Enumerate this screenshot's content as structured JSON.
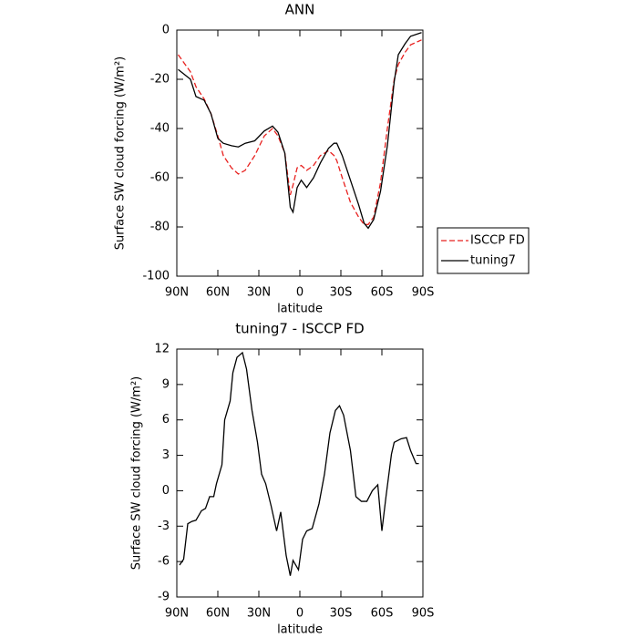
{
  "chart_data": [
    {
      "type": "line",
      "title": "ANN",
      "xlabel": "latitude",
      "ylabel": "Surface SW cloud forcing (W/m²)",
      "x": [
        89,
        80,
        76,
        70,
        65,
        60,
        56,
        50,
        45,
        40,
        33,
        26,
        20,
        16,
        11,
        7,
        5,
        2,
        -1,
        -5,
        -10,
        -15,
        -21,
        -25,
        -27,
        -31,
        -37,
        -43,
        -47,
        -50,
        -54,
        -59,
        -64,
        -69,
        -72,
        -77,
        -81,
        -89
      ],
      "series": [
        {
          "name": "ISCCP FD",
          "color": "#e8201e",
          "dashed": true,
          "values": [
            -10,
            -17,
            -23,
            -28,
            -34,
            -43,
            -51,
            -56,
            -58.5,
            -57,
            -51,
            -43,
            -40,
            -43,
            -50,
            -67,
            -63,
            -56,
            -55,
            -57,
            -55,
            -51,
            -49,
            -51,
            -53,
            -60,
            -70,
            -76,
            -79,
            -79,
            -76,
            -62,
            -40,
            -20,
            -14,
            -9,
            -6,
            -4
          ]
        },
        {
          "name": "tuning7",
          "color": "#000000",
          "dashed": false,
          "values": [
            -16,
            -20,
            -27,
            -28.5,
            -34,
            -44,
            -46,
            -47,
            -47.5,
            -46,
            -45,
            -41,
            -39,
            -41.5,
            -50,
            -72,
            -74,
            -64,
            -61,
            -64,
            -60,
            -54,
            -48,
            -46,
            -46,
            -51,
            -61,
            -71,
            -78.5,
            -80.5,
            -77,
            -65.5,
            -47,
            -21,
            -10,
            -5.5,
            -2.5,
            -1
          ]
        }
      ],
      "xlim": [
        90,
        -90
      ],
      "xticks": [
        {
          "value": 90,
          "label": "90N"
        },
        {
          "value": 60,
          "label": "60N"
        },
        {
          "value": 30,
          "label": "30N"
        },
        0,
        {
          "value": -30,
          "label": "30S"
        },
        {
          "value": -60,
          "label": "60S"
        },
        {
          "value": -90,
          "label": "90S"
        }
      ],
      "ylim": [
        -100,
        0
      ],
      "yticks": [
        -100,
        -80,
        -60,
        -40,
        -20,
        0
      ],
      "legend": "right"
    },
    {
      "type": "line",
      "title": "tuning7 - ISCCP FD",
      "xlabel": "latitude",
      "ylabel": "Surface SW cloud forcing (W/m²)",
      "x": [
        88,
        85,
        82,
        79,
        76,
        72,
        69,
        66,
        63,
        61,
        57,
        55,
        51,
        49,
        46,
        42,
        39,
        35,
        31,
        28,
        25,
        21,
        17,
        14,
        10,
        7,
        5,
        1,
        -2,
        -5,
        -9,
        -14,
        -18,
        -22,
        -26,
        -29,
        -32,
        -37,
        -41,
        -45,
        -49,
        -53,
        -57,
        -60,
        -63,
        -67,
        -69,
        -74,
        -78,
        -81,
        -85,
        -87
      ],
      "values": [
        -6.3,
        -5.8,
        -2.8,
        -2.6,
        -2.5,
        -1.7,
        -1.5,
        -0.5,
        -0.5,
        0.6,
        2.2,
        6,
        7.6,
        10,
        11.3,
        11.7,
        10.3,
        6.8,
        4.1,
        1.4,
        0.6,
        -1.3,
        -3.4,
        -1.8,
        -5.5,
        -7.2,
        -5.9,
        -6.7,
        -4.1,
        -3.4,
        -3.2,
        -1.1,
        1.4,
        4.9,
        6.8,
        7.2,
        6.4,
        3.4,
        -0.5,
        -0.9,
        -0.9,
        0,
        0.5,
        -3.4,
        -0.5,
        3.1,
        4.1,
        4.4,
        4.5,
        3.4,
        2.3,
        2.3
      ],
      "color": "#000000",
      "xlim": [
        90,
        -90
      ],
      "xticks": [
        {
          "value": 90,
          "label": "90N"
        },
        {
          "value": 60,
          "label": "60N"
        },
        {
          "value": 30,
          "label": "30N"
        },
        0,
        {
          "value": -30,
          "label": "30S"
        },
        {
          "value": -60,
          "label": "60S"
        },
        {
          "value": -90,
          "label": "90S"
        }
      ],
      "ylim": [
        -9,
        12
      ],
      "yticks": [
        -9,
        -6,
        -3,
        0,
        3,
        6,
        9,
        12
      ]
    }
  ]
}
